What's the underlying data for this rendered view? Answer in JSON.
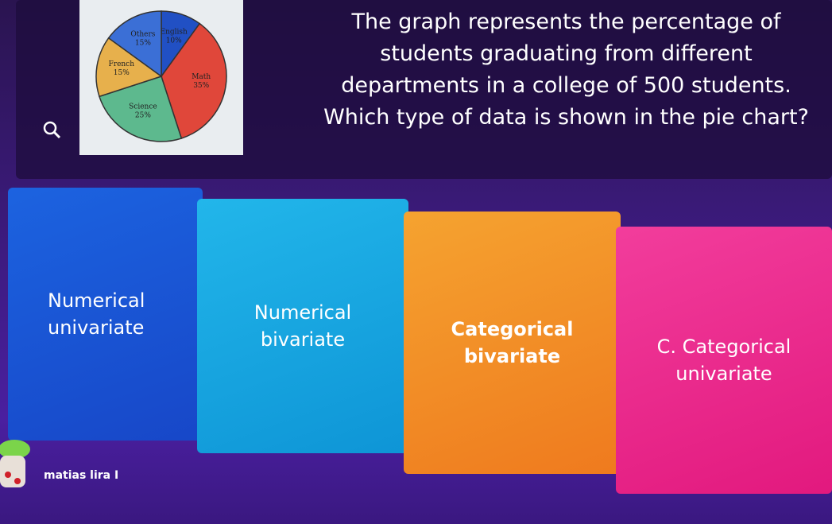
{
  "question": {
    "text": "The graph represents the percentage of students graduating from different departments in a college of 500 students. Which type of data is shown in the pie chart?"
  },
  "pie": {
    "type": "pie",
    "categories": [
      "English",
      "Math",
      "Science",
      "French",
      "Others"
    ],
    "values": [
      10,
      35,
      25,
      15,
      15
    ],
    "value_labels": [
      "10%",
      "35%",
      "25%",
      "15%",
      "15%"
    ],
    "colors": [
      "#2150c4",
      "#e0473a",
      "#5db98e",
      "#e7b04c",
      "#3b6fd6"
    ]
  },
  "answers": [
    {
      "text": "Numerical univariate"
    },
    {
      "text": "Numerical bivariate"
    },
    {
      "text": "Categorical bivariate"
    },
    {
      "text": "C. Categorical univariate"
    }
  ],
  "player": {
    "name": "matias lira I"
  }
}
